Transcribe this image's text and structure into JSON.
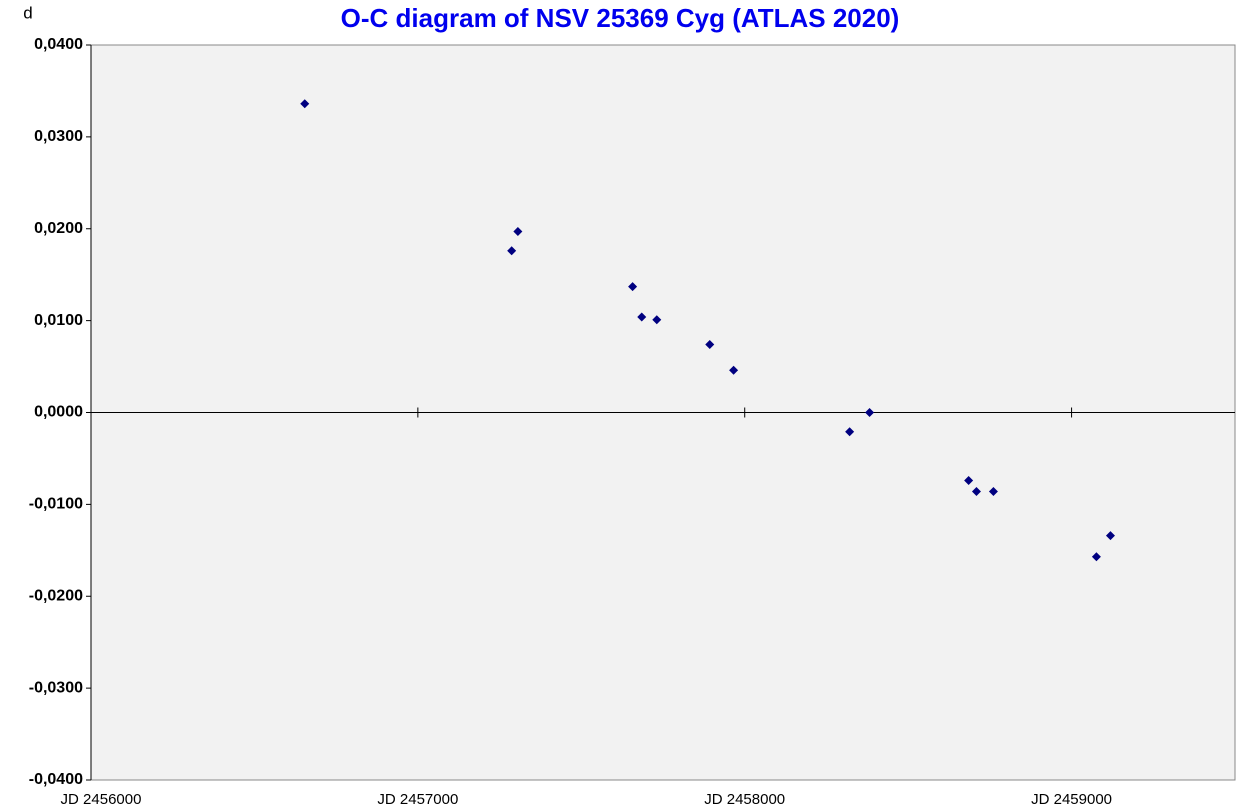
{
  "chart_data": {
    "type": "scatter",
    "title": "O-C diagram of NSV 25369 Cyg (ATLAS 2020)",
    "y_label": "d",
    "x": [
      2456654,
      2457287,
      2457306,
      2457657,
      2457685,
      2457731,
      2457893,
      2457966,
      2458321,
      2458382,
      2458685,
      2458709,
      2458761,
      2459076,
      2459119
    ],
    "values": [
      0.0336,
      0.0176,
      0.0197,
      0.0137,
      0.0104,
      0.0101,
      0.0074,
      0.0046,
      -0.0021,
      0.0,
      -0.0074,
      -0.0086,
      -0.0086,
      -0.0157,
      -0.0134
    ],
    "color": "#000080",
    "xlim": [
      2456000,
      2459500
    ],
    "ylim": [
      -0.04,
      0.04
    ],
    "xticks": [
      {
        "value": 2456000,
        "label": "JD 2456000"
      },
      {
        "value": 2457000,
        "label": "JD 2457000"
      },
      {
        "value": 2458000,
        "label": "JD 2458000"
      },
      {
        "value": 2459000,
        "label": "JD 2459000"
      }
    ],
    "yticks": [
      {
        "value": 0.04,
        "label": "0,0400"
      },
      {
        "value": 0.03,
        "label": "0,0300"
      },
      {
        "value": 0.02,
        "label": "0,0200"
      },
      {
        "value": 0.01,
        "label": "0,0100"
      },
      {
        "value": 0,
        "label": "0,0000"
      },
      {
        "value": -0.01,
        "label": "-0,0100"
      },
      {
        "value": -0.02,
        "label": "-0,0200"
      },
      {
        "value": -0.03,
        "label": "-0,0300"
      },
      {
        "value": -0.04,
        "label": "-0,0400"
      }
    ]
  }
}
